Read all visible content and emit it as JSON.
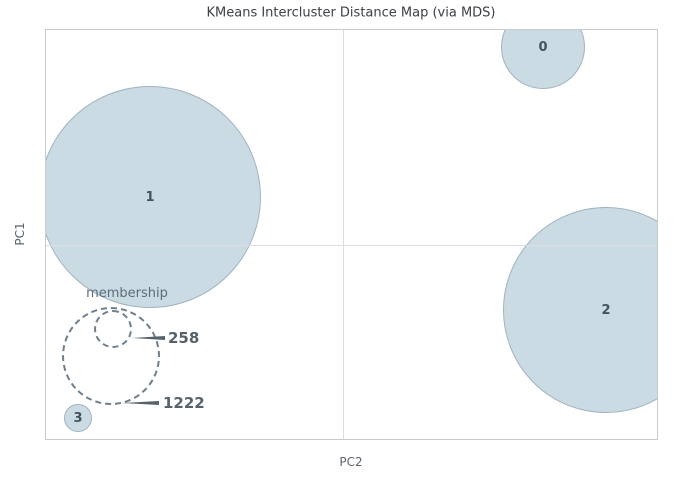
{
  "chart_data": {
    "type": "bubble",
    "title": "KMeans Intercluster Distance Map (via MDS)",
    "xlabel": "PC2",
    "ylabel": "PC1",
    "grid": true,
    "x_ticks_visible": false,
    "y_ticks_visible": false,
    "gridlines": {
      "x_frac": 0.486,
      "y_frac": 0.525
    },
    "clusters": [
      {
        "label": "0",
        "x_frac": 0.813,
        "y_frac": 0.042,
        "radius_px": 42
      },
      {
        "label": "1",
        "x_frac": 0.17,
        "y_frac": 0.408,
        "radius_px": 111
      },
      {
        "label": "2",
        "x_frac": 0.917,
        "y_frac": 0.685,
        "radius_px": 103
      },
      {
        "label": "3",
        "x_frac": 0.052,
        "y_frac": 0.949,
        "radius_px": 14
      }
    ],
    "size_legend": {
      "title": "membership",
      "entries": [
        {
          "value": "258",
          "radius_px": 19
        },
        {
          "value": "1222",
          "radius_px": 49
        }
      ]
    },
    "colors": {
      "bubble_fill": "#cadbe4",
      "bubble_edge": "#9fb3bf",
      "bubble_label_text": "#46525c",
      "grid": "#dbdee1",
      "axes_border": "#c6cbd0",
      "legend_dash": "#6e7e8a",
      "legend_text": "#55616b",
      "title_text": "#3a4147",
      "axis_label_text": "#5a656e"
    }
  }
}
